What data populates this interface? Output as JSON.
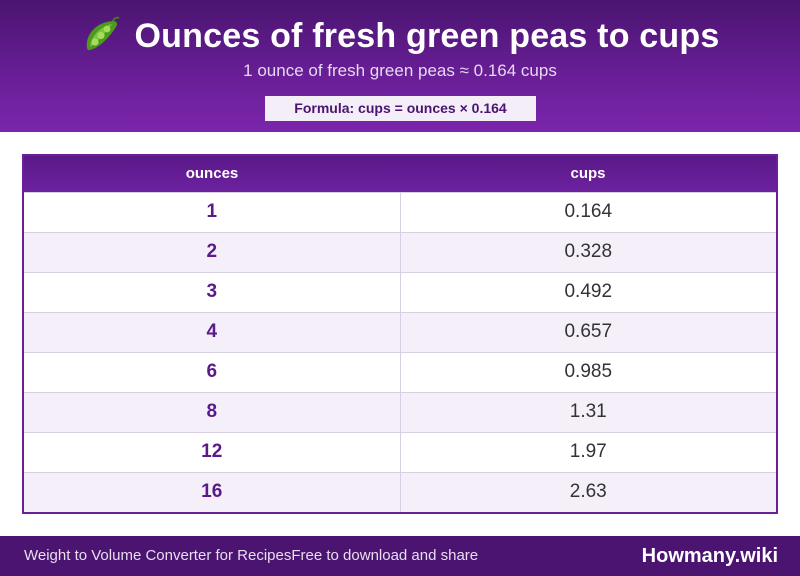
{
  "header": {
    "icon": "pea-pod-icon",
    "title": "Ounces of fresh green peas to cups",
    "subtitle": "1 ounce of fresh green peas ≈ 0.164 cups",
    "formula": "Formula: cups = ounces × 0.164"
  },
  "table": {
    "columns": [
      "ounces",
      "cups"
    ],
    "rows": [
      {
        "ounces": "1",
        "cups": "0.164"
      },
      {
        "ounces": "2",
        "cups": "0.328"
      },
      {
        "ounces": "3",
        "cups": "0.492"
      },
      {
        "ounces": "4",
        "cups": "0.657"
      },
      {
        "ounces": "6",
        "cups": "0.985"
      },
      {
        "ounces": "8",
        "cups": "1.31"
      },
      {
        "ounces": "12",
        "cups": "1.97"
      },
      {
        "ounces": "16",
        "cups": "2.63"
      }
    ]
  },
  "footer": {
    "tagline_1": "Weight to Volume Converter for Recipes",
    "tagline_2": "Free to download and share",
    "brand": "Howmany.wiki"
  },
  "colors": {
    "header_bg": "#6a1f98",
    "footer_bg": "#4a1470",
    "accent_text": "#5a1a8a"
  }
}
